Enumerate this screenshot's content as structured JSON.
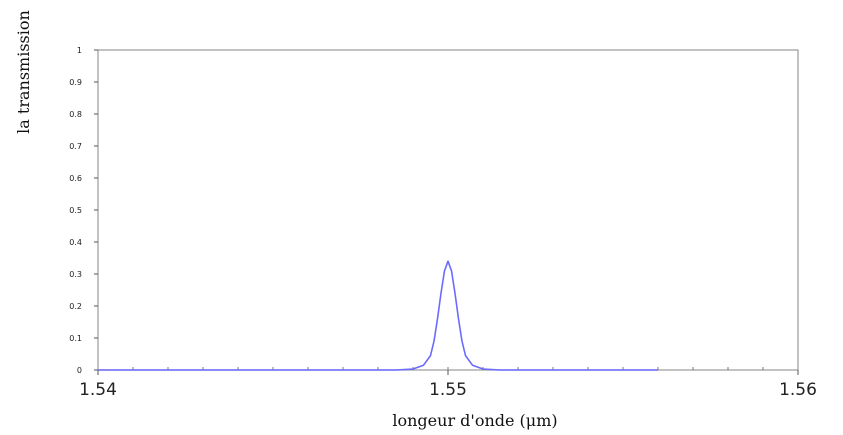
{
  "chart_data": {
    "type": "line",
    "xlabel": "longeur d'onde (μm)",
    "ylabel": "la transmission",
    "xlim": [
      1.54,
      1.56
    ],
    "ylim": [
      0,
      1
    ],
    "x_tick_labels": [
      "1.54",
      "1.55",
      "1.56"
    ],
    "y_tick_labels": [
      "0",
      "0.1",
      "0.2",
      "0.3",
      "0.4",
      "0.5",
      "0.6",
      "0.7",
      "0.8",
      "0.9",
      "1"
    ],
    "x_ticks": [
      1.54,
      1.55,
      1.56
    ],
    "y_ticks": [
      0,
      0.1,
      0.2,
      0.3,
      0.4,
      0.5,
      0.6,
      0.7,
      0.8,
      0.9,
      1
    ],
    "grid": false,
    "series": [
      {
        "color": "#6b6bff",
        "x": [
          1.54,
          1.5485,
          1.549,
          1.5493,
          1.5495,
          1.5496,
          1.5497,
          1.5498,
          1.5499,
          1.55,
          1.5501,
          1.5502,
          1.5503,
          1.5504,
          1.5505,
          1.5507,
          1.551,
          1.5515,
          1.556
        ],
        "y": [
          0.0,
          0.0,
          0.003,
          0.015,
          0.045,
          0.09,
          0.16,
          0.24,
          0.31,
          0.34,
          0.31,
          0.24,
          0.16,
          0.09,
          0.045,
          0.015,
          0.003,
          0.0,
          0.0
        ]
      }
    ]
  }
}
